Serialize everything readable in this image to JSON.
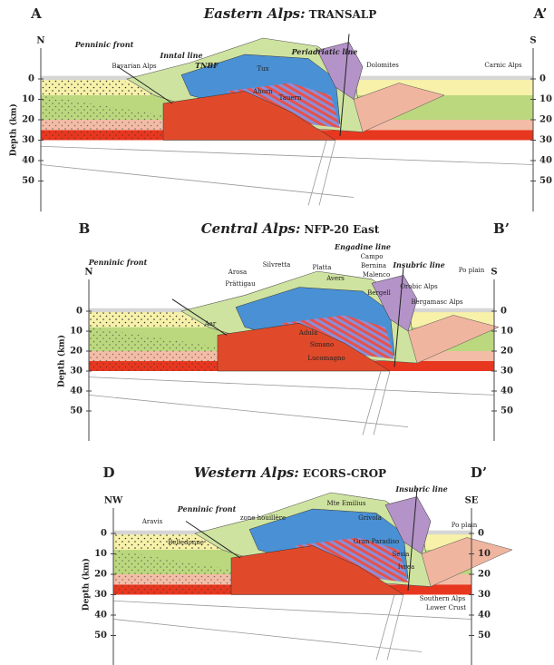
{
  "depth_ticks": [
    "0",
    "10",
    "20",
    "30",
    "40",
    "50"
  ],
  "panels": [
    {
      "letter": "A",
      "letter_end": "A’",
      "title": "Eastern Alps:",
      "subtitle": "TRANSALP",
      "left_dir": "N",
      "right_dir": "S",
      "depth_label": "Depth (km)",
      "major_labels": [
        "Penninic front",
        "Inntal line",
        "TNBF",
        "Periadriatic line"
      ],
      "labels": [
        "Bavarian Alps",
        "Dolomites",
        "Carnic Alps",
        "Tux",
        "Ahorn",
        "Tauern"
      ]
    },
    {
      "letter": "B",
      "letter_end": "B’",
      "title": "Central Alps:",
      "subtitle": "NFP-20 East",
      "left_dir": "N",
      "right_dir": "S",
      "depth_label": "Depth (km)",
      "major_labels": [
        "Penninic front",
        "Engadine line",
        "Insubric line"
      ],
      "labels": [
        "Silvretta",
        "Arosa",
        "Platta",
        "Avers",
        "Prättigau",
        "Campo",
        "Bernina",
        "Malenco",
        "Bergell",
        "Orobic Alps",
        "Po plain",
        "Bergamasc Alps",
        "Adula",
        "Simano",
        "Lucomagno",
        "Aar"
      ]
    },
    {
      "letter": "D",
      "letter_end": "D’",
      "title": "Western Alps:",
      "subtitle": "ECORS-CROP",
      "left_dir": "NW",
      "right_dir": "SE",
      "depth_label": "Depth (km)",
      "major_labels": [
        "Penninic front",
        "Insubric line"
      ],
      "labels": [
        "Aravis",
        "zone houillère",
        "Mte Emilius",
        "Grivola",
        "Gran Paradiso",
        "Sesia",
        "Ivrea",
        "Po plain",
        "Belledonne",
        "Southern Alps",
        "Lower Crust"
      ]
    }
  ]
}
